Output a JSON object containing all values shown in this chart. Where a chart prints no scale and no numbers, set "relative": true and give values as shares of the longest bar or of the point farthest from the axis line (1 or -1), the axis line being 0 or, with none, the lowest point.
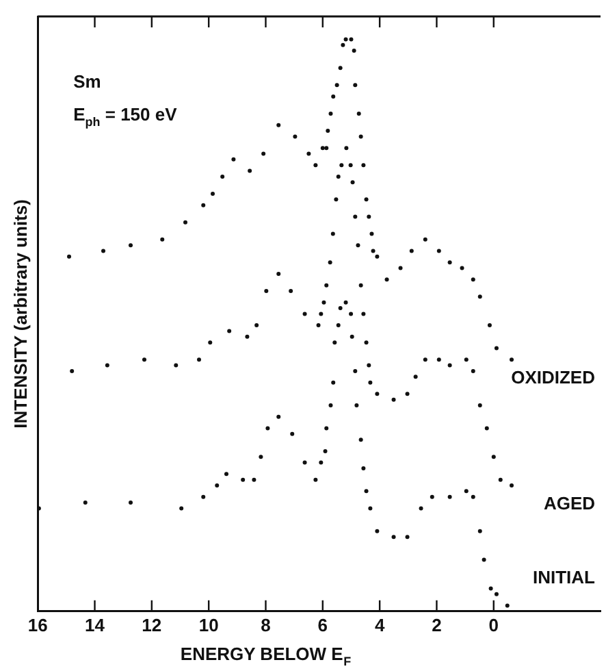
{
  "chart_data": {
    "type": "scatter",
    "relative": true,
    "xlabel": "ENERGY BELOW E$_{F}$",
    "ylabel": "INTENSITY (arbitrary units)",
    "annotations": [
      "Sm",
      "E$_{ph}$ = 150 eV"
    ],
    "xlim": [
      16,
      -3.75
    ],
    "xticks": [
      16,
      14,
      12,
      10,
      8,
      6,
      4,
      2,
      0
    ],
    "legend": false,
    "marker": "circle",
    "tick_labels": "x",
    "series": [
      {
        "name": "OXIDIZED",
        "color": "#111111",
        "x": [
          14.9,
          13.7,
          12.74,
          11.63,
          10.82,
          10.19,
          9.86,
          9.52,
          9.13,
          8.56,
          8.08,
          7.55,
          6.97,
          6.49,
          6.25,
          6.0,
          5.87,
          5.82,
          5.72,
          5.63,
          5.5,
          5.38,
          5.29,
          5.19,
          5.0,
          4.9,
          4.86,
          4.73,
          4.66,
          4.57,
          4.47,
          4.38,
          4.28,
          4.23,
          4.09,
          3.75,
          3.27,
          2.88,
          2.4,
          1.92,
          1.54,
          1.11,
          0.72,
          0.48,
          0.14,
          -0.1,
          -0.63
        ],
        "values": [
          0.62,
          0.63,
          0.64,
          0.65,
          0.68,
          0.71,
          0.73,
          0.76,
          0.79,
          0.77,
          0.8,
          0.85,
          0.83,
          0.8,
          0.78,
          0.81,
          0.81,
          0.84,
          0.87,
          0.9,
          0.92,
          0.95,
          0.99,
          1.0,
          1.0,
          0.98,
          0.92,
          0.87,
          0.83,
          0.78,
          0.72,
          0.69,
          0.66,
          0.63,
          0.62,
          0.58,
          0.6,
          0.63,
          0.65,
          0.63,
          0.61,
          0.6,
          0.58,
          0.55,
          0.5,
          0.46,
          0.44
        ]
      },
      {
        "name": "AGED",
        "color": "#111111",
        "x": [
          14.8,
          13.56,
          12.26,
          11.15,
          10.34,
          9.95,
          9.28,
          8.65,
          8.32,
          7.98,
          7.55,
          7.12,
          6.63,
          6.15,
          6.06,
          5.96,
          5.87,
          5.74,
          5.64,
          5.53,
          5.45,
          5.34,
          5.17,
          5.02,
          4.95,
          4.86,
          4.76,
          4.66,
          4.57,
          4.47,
          4.38,
          4.33,
          4.09,
          3.51,
          3.03,
          2.74,
          2.4,
          1.92,
          1.54,
          0.96,
          0.72,
          0.48,
          0.24,
          0,
          -0.24,
          -0.63
        ],
        "values": [
          0.42,
          0.43,
          0.44,
          0.43,
          0.44,
          0.47,
          0.49,
          0.48,
          0.5,
          0.56,
          0.59,
          0.56,
          0.52,
          0.5,
          0.52,
          0.54,
          0.57,
          0.61,
          0.66,
          0.72,
          0.76,
          0.78,
          0.81,
          0.78,
          0.75,
          0.69,
          0.64,
          0.57,
          0.52,
          0.47,
          0.43,
          0.4,
          0.38,
          0.37,
          0.38,
          0.41,
          0.44,
          0.44,
          0.43,
          0.44,
          0.42,
          0.36,
          0.32,
          0.27,
          0.23,
          0.22
        ]
      },
      {
        "name": "INITIAL",
        "color": "#111111",
        "x": [
          15.96,
          14.33,
          12.74,
          10.96,
          10.19,
          9.71,
          9.38,
          8.8,
          8.41,
          8.17,
          7.93,
          7.55,
          7.07,
          6.63,
          6.25,
          6.06,
          5.91,
          5.87,
          5.72,
          5.63,
          5.58,
          5.45,
          5.38,
          5.19,
          5.01,
          4.97,
          4.86,
          4.81,
          4.66,
          4.57,
          4.47,
          4.33,
          4.09,
          3.51,
          3.03,
          2.55,
          2.16,
          1.54,
          0.96,
          0.72,
          0.48,
          0.34,
          0.1,
          -0.1,
          -0.48
        ],
        "values": [
          0.18,
          0.19,
          0.19,
          0.18,
          0.2,
          0.22,
          0.24,
          0.23,
          0.23,
          0.27,
          0.32,
          0.34,
          0.31,
          0.26,
          0.23,
          0.26,
          0.28,
          0.32,
          0.36,
          0.4,
          0.47,
          0.5,
          0.53,
          0.54,
          0.52,
          0.48,
          0.42,
          0.36,
          0.3,
          0.25,
          0.21,
          0.18,
          0.14,
          0.13,
          0.13,
          0.18,
          0.2,
          0.2,
          0.21,
          0.2,
          0.14,
          0.09,
          0.04,
          0.03,
          0.01
        ]
      }
    ]
  }
}
